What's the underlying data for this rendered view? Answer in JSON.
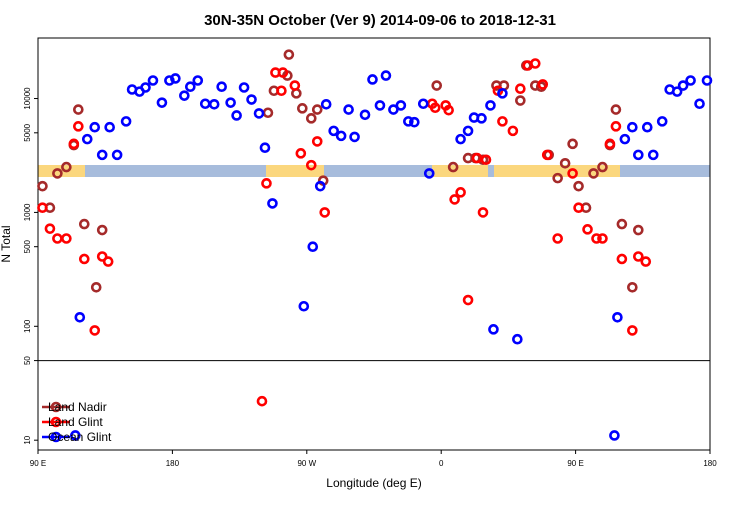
{
  "chart_data": {
    "type": "scatter",
    "title": "30N-35N October (Ver 9)   2014-09-06 to 2018-12-31",
    "xlabel": "Longitude (deg E)",
    "ylabel": "N Total",
    "xlim": [
      90,
      540
    ],
    "ylim": [
      8.2,
      34000
    ],
    "log_y": true,
    "xticks": [
      {
        "value": 90,
        "label": "90 E"
      },
      {
        "value": 180,
        "label": "180"
      },
      {
        "value": 270,
        "label": "90 W"
      },
      {
        "value": 360,
        "label": "0"
      },
      {
        "value": 450,
        "label": "90 E"
      },
      {
        "value": 540,
        "label": "180"
      }
    ],
    "yticks": [
      10,
      50,
      100,
      500,
      1000,
      5000,
      10000
    ],
    "hline": 50,
    "legend": "bottom-left",
    "series": [
      {
        "name": "Land Nadir",
        "color": "#a52a2a",
        "x": [
          93,
          98,
          103,
          109,
          114,
          117,
          121,
          129,
          133,
          244,
          248,
          258,
          257,
          263,
          267,
          273,
          277,
          281,
          357,
          368,
          378,
          383,
          388,
          397,
          402,
          413,
          417,
          423,
          427,
          432,
          438,
          443,
          448,
          452,
          457,
          462,
          468,
          473,
          477,
          481,
          488,
          492
        ],
        "values": [
          1700,
          1100,
          2200,
          2500,
          3900,
          8000,
          790,
          220,
          700,
          7500,
          11700,
          24300,
          15900,
          11100,
          8200,
          6700,
          8000,
          1900,
          13000,
          2500,
          3000,
          3000,
          2900,
          13000,
          13000,
          9600,
          19500,
          13000,
          12700,
          3200,
          2000,
          2700,
          4000,
          1700,
          1100,
          2200,
          2500,
          3900,
          8000,
          790,
          220,
          700
        ]
      },
      {
        "name": "Land Glint",
        "color": "#ff0000",
        "x": [
          93,
          98,
          103,
          109,
          114,
          117,
          121,
          133,
          137,
          128,
          243,
          249,
          253,
          254,
          262,
          266,
          273,
          277,
          282,
          354,
          356,
          363,
          365,
          369,
          373,
          378,
          384,
          388,
          390,
          398,
          401,
          408,
          413,
          418,
          423,
          428,
          431,
          438,
          448,
          452,
          458,
          464,
          468,
          473,
          477,
          481,
          488,
          492,
          497,
          240
        ],
        "values": [
          1100,
          720,
          590,
          590,
          4000,
          5700,
          390,
          410,
          370,
          92,
          1800,
          16900,
          11700,
          16900,
          13000,
          3300,
          2600,
          4200,
          1000,
          9000,
          8300,
          8700,
          7900,
          1300,
          1500,
          170,
          3000,
          1000,
          2900,
          11700,
          6300,
          5200,
          12200,
          19500,
          20300,
          13300,
          3200,
          590,
          2200,
          1100,
          710,
          590,
          590,
          4000,
          5700,
          390,
          92,
          410,
          370,
          22
        ]
      },
      {
        "name": "Ocean Glint",
        "color": "#0000ff",
        "x": [
          118,
          123,
          128,
          133,
          138,
          143,
          149,
          153,
          158,
          162,
          167,
          173,
          178,
          182,
          188,
          192,
          197,
          202,
          208,
          213,
          219,
          223,
          228,
          233,
          238,
          242,
          247,
          268,
          274,
          279,
          283,
          288,
          293,
          298,
          302,
          309,
          314,
          319,
          323,
          328,
          333,
          338,
          342,
          348,
          352,
          373,
          378,
          382,
          387,
          393,
          395,
          401,
          411,
          476,
          478,
          483,
          488,
          492,
          498,
          502,
          508,
          513,
          518,
          522,
          527,
          533,
          538,
          115
        ],
        "values": [
          120,
          4400,
          5600,
          3200,
          5600,
          3200,
          6300,
          12000,
          11500,
          12500,
          14400,
          9200,
          14400,
          15000,
          10600,
          12700,
          14400,
          9000,
          8900,
          12700,
          9200,
          7100,
          12500,
          9800,
          7400,
          3700,
          1200,
          150,
          500,
          1700,
          8900,
          5200,
          4700,
          8000,
          4600,
          7200,
          14700,
          8700,
          15900,
          8000,
          8700,
          6300,
          6200,
          9000,
          2200,
          4400,
          5200,
          6800,
          6700,
          8700,
          94,
          11100,
          77,
          11,
          120,
          4400,
          5600,
          3200,
          5600,
          3200,
          6300,
          12000,
          11500,
          13000,
          14400,
          9000,
          14400,
          11
        ]
      }
    ]
  }
}
